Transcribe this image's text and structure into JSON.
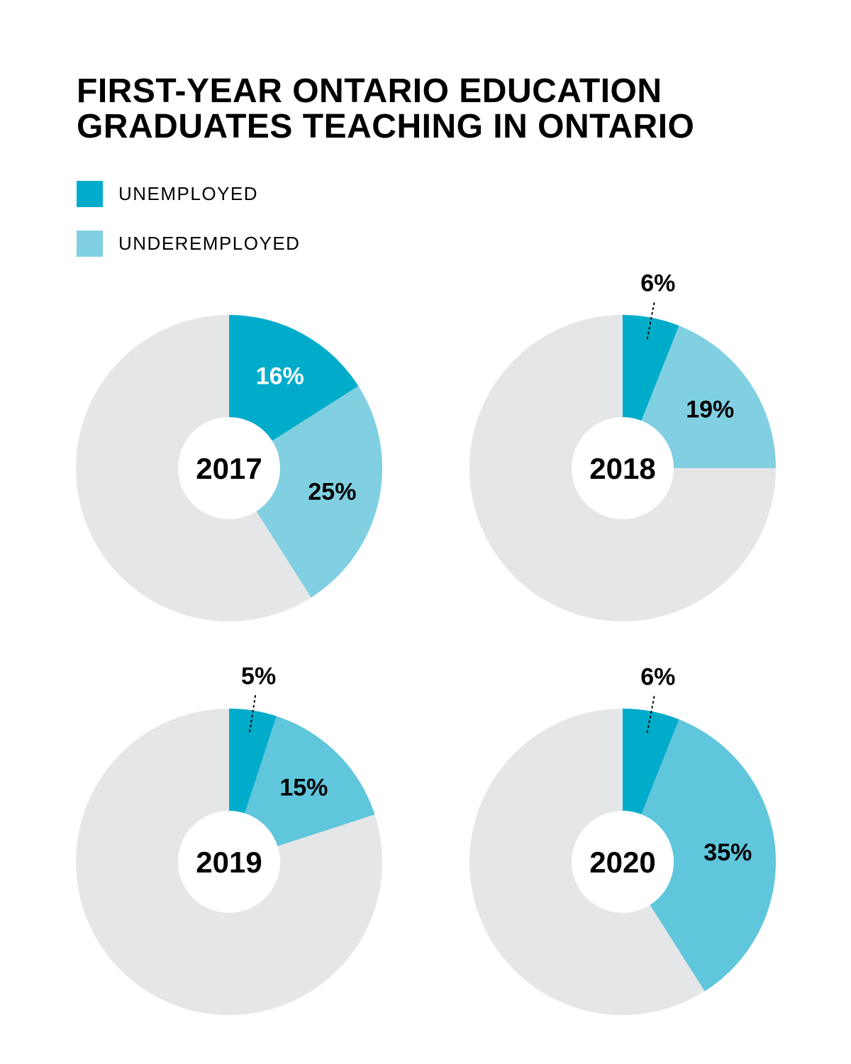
{
  "title_lines": [
    "FIRST-YEAR ONTARIO EDUCATION",
    "GRADUATES TEACHING IN ONTARIO"
  ],
  "legend": [
    {
      "label": "UNEMPLOYED",
      "color": "#00acca"
    },
    {
      "label": "UNDEREMPLOYED",
      "color": "#80d0e2"
    }
  ],
  "colors": {
    "remainder": "#e5e6e8",
    "center": "#ffffff"
  },
  "chart_data": [
    {
      "type": "pie",
      "year_label": "2017",
      "slices": [
        {
          "name": "UNEMPLOYED",
          "value": 16,
          "label": "16%",
          "color": "#00acca"
        },
        {
          "name": "UNDEREMPLOYED",
          "value": 25,
          "label": "25%",
          "color": "#80d0e2"
        }
      ]
    },
    {
      "type": "pie",
      "year_label": "2018",
      "slices": [
        {
          "name": "UNEMPLOYED",
          "value": 6,
          "label": "6%",
          "color": "#00acca"
        },
        {
          "name": "UNDEREMPLOYED",
          "value": 19,
          "label": "19%",
          "color": "#80d0e2"
        }
      ]
    },
    {
      "type": "pie",
      "year_label": "2019",
      "slices": [
        {
          "name": "UNEMPLOYED",
          "value": 5,
          "label": "5%",
          "color": "#00acca"
        },
        {
          "name": "UNDEREMPLOYED",
          "value": 15,
          "label": "15%",
          "color": "#5fc6dc"
        }
      ]
    },
    {
      "type": "pie",
      "year_label": "2020",
      "slices": [
        {
          "name": "UNEMPLOYED",
          "value": 6,
          "label": "6%",
          "color": "#00acca"
        },
        {
          "name": "UNDEREMPLOYED",
          "value": 35,
          "label": "35%",
          "color": "#5fc6dc"
        }
      ]
    }
  ]
}
